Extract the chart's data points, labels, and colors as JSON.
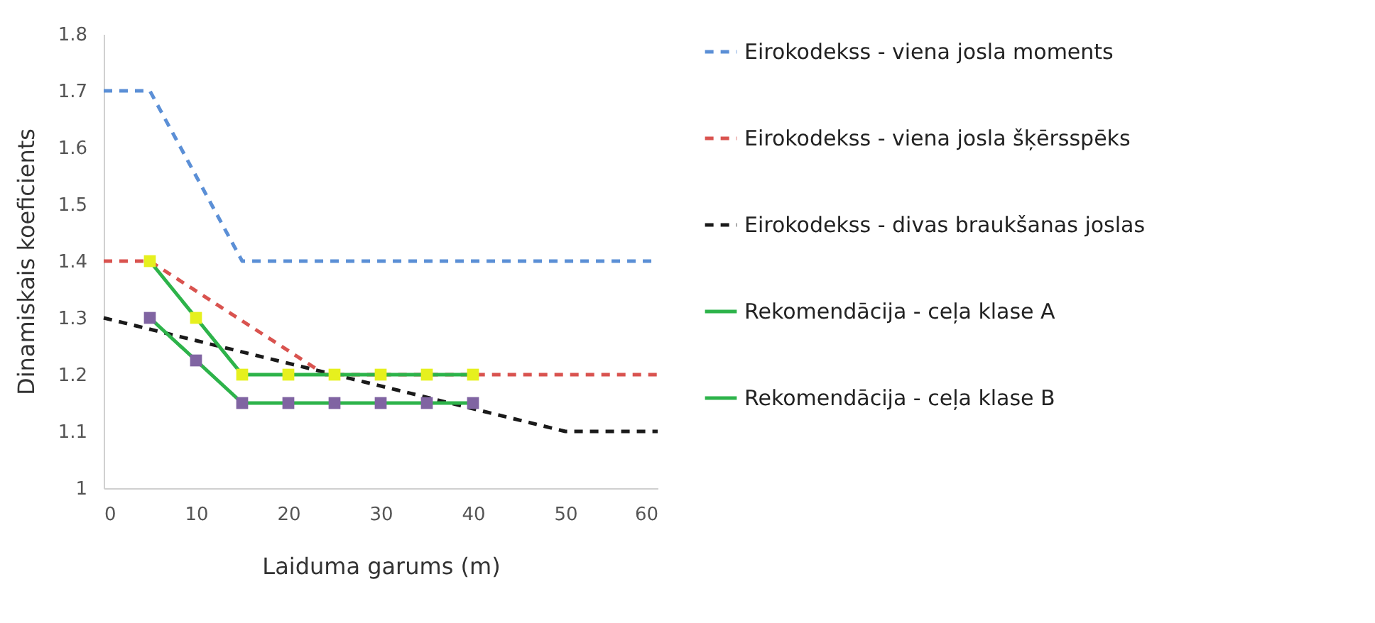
{
  "chart_data": {
    "type": "line",
    "xlabel": "Laiduma garums (m)",
    "ylabel": "Dinamiskais koeficients",
    "xlim": [
      0,
      60
    ],
    "xticks": [
      0,
      10,
      20,
      30,
      40,
      50,
      60
    ],
    "ylim": [
      1,
      1.8
    ],
    "yticks": [
      1,
      1.1,
      1.2,
      1.3,
      1.4,
      1.5,
      1.6,
      1.7,
      1.8
    ],
    "grid": false,
    "legend": "right",
    "series": [
      {
        "name": "Eirokodekss - viena josla moments",
        "color": "#5b8fd6",
        "line_style": "dashed",
        "marker": "none",
        "x": [
          0,
          5,
          15,
          60
        ],
        "values": [
          1.7,
          1.7,
          1.4,
          1.4
        ]
      },
      {
        "name": "Eirokodekss - viena josla šķērsspēks",
        "color": "#d9534f",
        "line_style": "dashed",
        "marker": "none",
        "x": [
          0,
          5,
          24,
          60
        ],
        "values": [
          1.4,
          1.4,
          1.2,
          1.2
        ]
      },
      {
        "name": "Eirokodekss - divas braukšanas joslas",
        "color": "#1a1a1a",
        "line_style": "dashed",
        "marker": "none",
        "x": [
          0,
          50,
          60
        ],
        "values": [
          1.3,
          1.1,
          1.1
        ]
      },
      {
        "name": "Rekomendācija - ceļa klase A",
        "color": "#2db34a",
        "line_style": "solid",
        "marker": "square",
        "colors": [
          "#8064a2",
          "#8064a2",
          "#8064a2",
          "#8064a2",
          "#8064a2",
          "#8064a2",
          "#8064a2",
          "#8064a2"
        ],
        "x": [
          5,
          10,
          15,
          20,
          25,
          30,
          35,
          40
        ],
        "values": [
          1.3,
          1.225,
          1.15,
          1.15,
          1.15,
          1.15,
          1.15,
          1.15
        ]
      },
      {
        "name": "Rekomendācija - ceļa klase B",
        "color": "#2db34a",
        "line_style": "solid",
        "marker": "square",
        "colors": [
          "#e6f01e",
          "#e6f01e",
          "#e6f01e",
          "#e6f01e",
          "#e6f01e",
          "#e6f01e",
          "#e6f01e",
          "#e6f01e"
        ],
        "x": [
          5,
          10,
          15,
          20,
          25,
          30,
          35,
          40
        ],
        "values": [
          1.4,
          1.3,
          1.2,
          1.2,
          1.2,
          1.2,
          1.2,
          1.2
        ]
      }
    ]
  }
}
